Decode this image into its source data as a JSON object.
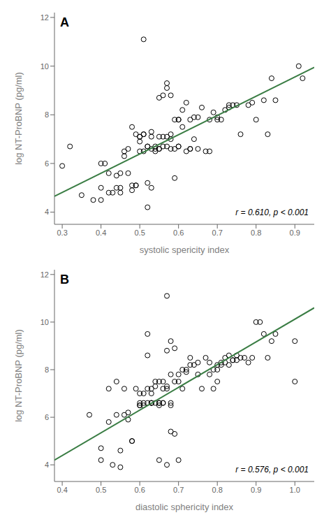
{
  "chart_data": [
    {
      "type": "scatter",
      "title": "A",
      "xlabel": "systolic spericity index",
      "ylabel": "log NT-ProBNP (pg/ml)",
      "annotation": "r = 0.610, p < 0.001",
      "xlim": [
        0.28,
        0.95
      ],
      "ylim": [
        3.5,
        12.2
      ],
      "xticks": [
        0.3,
        0.4,
        0.5,
        0.6,
        0.7,
        0.8,
        0.9
      ],
      "yticks": [
        4,
        6,
        8,
        10,
        12
      ],
      "grid": false,
      "series": [
        {
          "type": "scatter",
          "color": "#000000",
          "marker": "hollow_circle",
          "x": [
            0.3,
            0.32,
            0.35,
            0.38,
            0.4,
            0.4,
            0.4,
            0.41,
            0.42,
            0.42,
            0.43,
            0.44,
            0.44,
            0.45,
            0.45,
            0.45,
            0.46,
            0.46,
            0.47,
            0.47,
            0.48,
            0.48,
            0.48,
            0.49,
            0.49,
            0.49,
            0.5,
            0.5,
            0.5,
            0.5,
            0.51,
            0.51,
            0.51,
            0.51,
            0.52,
            0.52,
            0.52,
            0.52,
            0.53,
            0.53,
            0.53,
            0.53,
            0.54,
            0.54,
            0.54,
            0.55,
            0.55,
            0.55,
            0.55,
            0.56,
            0.56,
            0.56,
            0.57,
            0.57,
            0.57,
            0.57,
            0.58,
            0.58,
            0.58,
            0.58,
            0.59,
            0.59,
            0.59,
            0.6,
            0.6,
            0.6,
            0.6,
            0.61,
            0.61,
            0.62,
            0.62,
            0.63,
            0.63,
            0.63,
            0.64,
            0.64,
            0.65,
            0.65,
            0.66,
            0.67,
            0.68,
            0.68,
            0.69,
            0.7,
            0.7,
            0.71,
            0.72,
            0.73,
            0.73,
            0.74,
            0.75,
            0.76,
            0.78,
            0.79,
            0.8,
            0.82,
            0.83,
            0.84,
            0.85,
            0.91,
            0.92
          ],
          "values": [
            5.9,
            6.7,
            4.7,
            4.5,
            6.0,
            5.0,
            4.5,
            6.0,
            4.8,
            5.6,
            4.8,
            5.5,
            5.0,
            5.6,
            4.8,
            5.0,
            6.3,
            6.5,
            6.6,
            5.6,
            4.9,
            5.1,
            7.5,
            5.1,
            5.1,
            7.2,
            7.1,
            7.1,
            6.5,
            6.9,
            7.2,
            6.5,
            7.2,
            11.1,
            6.7,
            6.7,
            5.2,
            4.2,
            7.1,
            7.3,
            6.6,
            5.0,
            6.6,
            6.5,
            6.7,
            8.7,
            6.6,
            7.1,
            6.6,
            7.1,
            8.8,
            6.7,
            9.1,
            9.3,
            7.1,
            6.7,
            7.2,
            7.0,
            8.8,
            6.6,
            7.8,
            6.6,
            5.4,
            6.7,
            7.8,
            6.7,
            7.8,
            7.5,
            8.2,
            6.5,
            8.5,
            6.6,
            7.8,
            6.6,
            7.9,
            7.0,
            7.9,
            6.6,
            8.3,
            6.5,
            6.5,
            7.8,
            8.1,
            7.8,
            7.9,
            7.8,
            8.2,
            8.3,
            8.4,
            8.4,
            8.4,
            7.2,
            8.4,
            8.5,
            7.8,
            8.6,
            7.2,
            9.5,
            8.6,
            10.0,
            9.5
          ]
        },
        {
          "type": "line",
          "color": "#3a7d44",
          "x": [
            0.28,
            0.95
          ],
          "values": [
            4.65,
            9.95
          ]
        }
      ]
    },
    {
      "type": "scatter",
      "title": "B",
      "xlabel": "diastolic sphericity index",
      "ylabel": "log NT-ProBNP (pg/ml)",
      "annotation": "r = 0.576, p < 0.001",
      "xlim": [
        0.38,
        1.05
      ],
      "ylim": [
        3.3,
        12.2
      ],
      "xticks": [
        0.4,
        0.5,
        0.6,
        0.7,
        0.8,
        0.9,
        {
          "value": 1.0,
          "label": "1.0"
        }
      ],
      "yticks": [
        4,
        6,
        8,
        10,
        12
      ],
      "grid": false,
      "series": [
        {
          "type": "scatter",
          "color": "#000000",
          "marker": "hollow_circle",
          "x": [
            0.47,
            0.5,
            0.52,
            0.52,
            0.53,
            0.54,
            0.55,
            0.55,
            0.56,
            0.56,
            0.57,
            0.57,
            0.58,
            0.58,
            0.59,
            0.6,
            0.6,
            0.6,
            0.6,
            0.61,
            0.61,
            0.61,
            0.62,
            0.62,
            0.62,
            0.62,
            0.63,
            0.63,
            0.63,
            0.63,
            0.63,
            0.64,
            0.64,
            0.64,
            0.65,
            0.65,
            0.65,
            0.65,
            0.66,
            0.66,
            0.66,
            0.66,
            0.67,
            0.67,
            0.67,
            0.67,
            0.68,
            0.68,
            0.68,
            0.68,
            0.69,
            0.69,
            0.69,
            0.7,
            0.7,
            0.7,
            0.71,
            0.71,
            0.72,
            0.72,
            0.73,
            0.73,
            0.74,
            0.75,
            0.75,
            0.76,
            0.77,
            0.78,
            0.78,
            0.79,
            0.79,
            0.8,
            0.8,
            0.8,
            0.81,
            0.81,
            0.82,
            0.82,
            0.83,
            0.83,
            0.84,
            0.84,
            0.85,
            0.85,
            0.86,
            0.87,
            0.88,
            0.89,
            0.9,
            0.91,
            0.92,
            0.93,
            0.94,
            0.95,
            1.0,
            1.0,
            0.54,
            0.65,
            0.67,
            0.68,
            0.5
          ],
          "values": [
            6.1,
            4.7,
            7.2,
            5.8,
            4.0,
            6.1,
            4.6,
            3.9,
            6.1,
            7.2,
            5.9,
            6.2,
            5.0,
            5.0,
            7.2,
            7.0,
            6.6,
            6.5,
            6.5,
            7.0,
            6.6,
            6.5,
            9.5,
            6.6,
            8.6,
            7.2,
            7.0,
            6.6,
            6.6,
            6.6,
            7.2,
            7.3,
            6.6,
            7.5,
            6.6,
            6.6,
            6.5,
            7.5,
            7.2,
            6.6,
            7.5,
            6.6,
            8.8,
            7.2,
            7.3,
            11.1,
            9.2,
            7.8,
            6.6,
            5.4,
            8.9,
            7.5,
            5.3,
            7.5,
            7.8,
            4.2,
            7.2,
            8.0,
            7.9,
            8.0,
            8.5,
            8.2,
            8.2,
            8.3,
            7.8,
            7.2,
            8.5,
            7.8,
            8.3,
            8.0,
            7.2,
            7.5,
            8.2,
            8.0,
            8.3,
            8.2,
            8.5,
            8.3,
            8.2,
            8.6,
            8.4,
            8.4,
            8.4,
            8.6,
            8.5,
            8.5,
            8.3,
            8.5,
            10.0,
            10.0,
            9.5,
            8.5,
            9.2,
            9.5,
            9.2,
            7.5,
            7.5,
            4.2,
            4.0,
            6.5,
            4.2
          ]
        },
        {
          "type": "line",
          "color": "#3a7d44",
          "x": [
            0.38,
            1.05
          ],
          "values": [
            4.2,
            10.6
          ]
        }
      ]
    }
  ]
}
